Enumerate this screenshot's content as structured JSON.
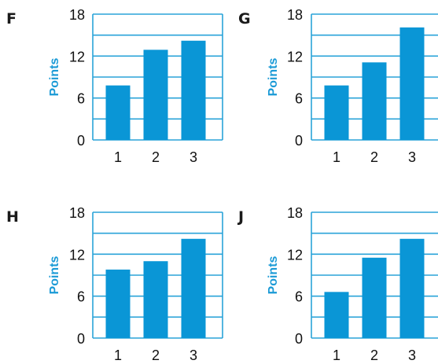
{
  "colors": {
    "bar": "#0a96d6",
    "grid": "#2aa3d9",
    "axis_label": "#1a9ad6",
    "text": "#111111"
  },
  "chart_data": [
    {
      "panel": "F",
      "type": "bar",
      "categories": [
        "1",
        "2",
        "3"
      ],
      "values": [
        7.8,
        12.9,
        14.2
      ],
      "ylabel": "Points",
      "xlabel": "",
      "yticks": [
        "0",
        "6",
        "12",
        "18"
      ],
      "ylim": [
        0,
        18
      ],
      "grid": true
    },
    {
      "panel": "G",
      "type": "bar",
      "categories": [
        "1",
        "2",
        "3"
      ],
      "values": [
        7.8,
        11.1,
        16.1
      ],
      "ylabel": "Points",
      "xlabel": "",
      "yticks": [
        "0",
        "6",
        "12",
        "18"
      ],
      "ylim": [
        0,
        18
      ],
      "grid": true
    },
    {
      "panel": "H",
      "type": "bar",
      "categories": [
        "1",
        "2",
        "3"
      ],
      "values": [
        9.8,
        11.0,
        14.2
      ],
      "ylabel": "Points",
      "xlabel": "",
      "yticks": [
        "0",
        "6",
        "12",
        "18"
      ],
      "ylim": [
        0,
        18
      ],
      "grid": true
    },
    {
      "panel": "J",
      "type": "bar",
      "categories": [
        "1",
        "2",
        "3"
      ],
      "values": [
        6.6,
        11.5,
        14.2
      ],
      "ylabel": "Points",
      "xlabel": "",
      "yticks": [
        "0",
        "6",
        "12",
        "18"
      ],
      "ylim": [
        0,
        18
      ],
      "grid": true
    }
  ]
}
